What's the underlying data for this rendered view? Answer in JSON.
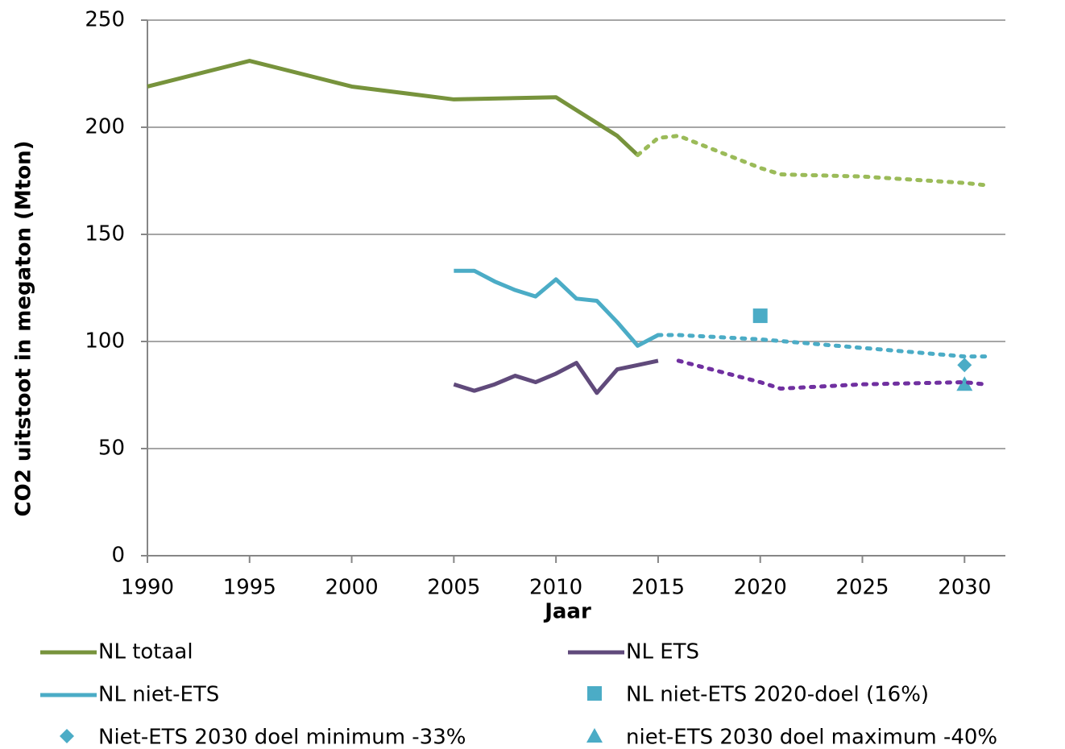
{
  "chart_data": {
    "type": "line",
    "y_label": "CO2 uitstoot in megaton (Mton)",
    "x_label": "Jaar",
    "xlim": [
      1990,
      2032
    ],
    "xticks": [
      1990,
      1995,
      2000,
      2005,
      2010,
      2015,
      2020,
      2025,
      2030
    ],
    "ylim": [
      0,
      250
    ],
    "yticks": [
      0,
      50,
      100,
      150,
      200,
      250
    ],
    "grid": true,
    "legend": "bottom",
    "series": [
      {
        "name": "NL totaal",
        "color": "#77933c",
        "style": "solid",
        "x": [
          1990,
          1995,
          2000,
          2005,
          2010,
          2013,
          2014
        ],
        "values": [
          219,
          231,
          219,
          213,
          214,
          196,
          187
        ]
      },
      {
        "name": "NL ETS",
        "color": "#604a7b",
        "style": "solid",
        "x": [
          2005,
          2006,
          2007,
          2008,
          2009,
          2010,
          2011,
          2012,
          2013,
          2014,
          2015
        ],
        "values": [
          80,
          77,
          80,
          84,
          81,
          85,
          90,
          76,
          87,
          89,
          91
        ]
      },
      {
        "name": "NL niet-ETS",
        "color": "#4bacc6",
        "style": "solid",
        "x": [
          2005,
          2006,
          2007,
          2008,
          2009,
          2010,
          2011,
          2012,
          2013,
          2014,
          2015
        ],
        "values": [
          133,
          133,
          128,
          124,
          121,
          129,
          120,
          119,
          109,
          98,
          103
        ]
      },
      {
        "name": "NL niet-ETS 2020-doel (16%)",
        "color": "#4bacc6",
        "style": "square",
        "x": [
          2020
        ],
        "values": [
          112
        ]
      },
      {
        "name": "Niet-ETS 2030 doel minimum -33%",
        "color": "#4bacc6",
        "style": "diamond",
        "x": [
          2030
        ],
        "values": [
          89
        ]
      },
      {
        "name": "niet-ETS 2030 doel maximum -40%",
        "color": "#4bacc6",
        "style": "triangle",
        "x": [
          2030
        ],
        "values": [
          80
        ]
      },
      {
        "color": "#9bbb59",
        "style": "dotted",
        "x": [
          2014,
          2015,
          2016,
          2020,
          2021,
          2025,
          2030,
          2031
        ],
        "values": [
          187,
          195,
          196,
          181,
          178,
          177,
          174,
          173
        ]
      },
      {
        "color": "#7030a0",
        "style": "dotted",
        "x": [
          2016,
          2020,
          2021,
          2025,
          2030,
          2031
        ],
        "values": [
          91,
          81,
          78,
          80,
          81,
          80
        ]
      },
      {
        "color": "#4bacc6",
        "style": "dotted",
        "x": [
          2015,
          2016,
          2020,
          2025,
          2030,
          2031
        ],
        "values": [
          103,
          103,
          101,
          97,
          93,
          93
        ]
      }
    ]
  }
}
